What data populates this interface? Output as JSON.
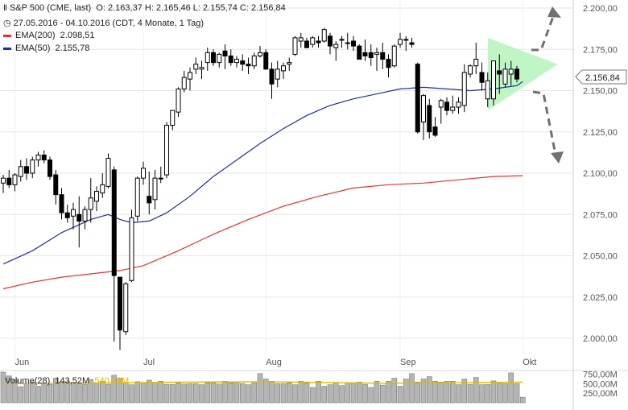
{
  "header": {
    "instrument": "S&P 500 (CME, last)",
    "ohlc": "O: 2.163,37  H: 2.165,46  L: 2.155,74  C: 2.156,84",
    "period": "27.05.2016 - 04.10.2016 (CDT, 4 Monate, 1 Tag)",
    "ema200_label": "EMA(200)",
    "ema200_value": "2.098,51",
    "ema50_label": "EMA(50)",
    "ema50_value": "2.155,78",
    "last_price_tag": "2.156,84"
  },
  "volume_panel": {
    "label": "Volume(28)",
    "last_value": "143,52M",
    "avg_value": "540,20M"
  },
  "colors": {
    "ema200": "#e8322c",
    "ema50": "#1f2fa0",
    "candle_up_fill": "#ffffff",
    "candle_down_fill": "#000000",
    "triangle_fill": "#b9f5c0",
    "volume_avg": "#e6b800",
    "arrow": "#707070"
  },
  "chart_data": {
    "type": "candlestick",
    "y_axis": {
      "range": [
        1990,
        2200
      ],
      "ticks": [
        2000,
        2025,
        2050,
        2075,
        2100,
        2125,
        2150,
        2175,
        2200
      ],
      "tick_labels": [
        "2.000,00",
        "2.025,00",
        "2.050,00",
        "2.075,00",
        "2.100,00",
        "2.125,00",
        "2.150,00",
        "2.175,00",
        "2.200,00"
      ]
    },
    "x_axis": {
      "labels": [
        {
          "text": "Jun",
          "index": 2
        },
        {
          "text": "Jul",
          "index": 24
        },
        {
          "text": "Aug",
          "index": 45
        },
        {
          "text": "Sep",
          "index": 68
        },
        {
          "text": "Okt",
          "index": 89
        }
      ]
    },
    "candles": [
      [
        2094,
        2099,
        2088,
        2097
      ],
      [
        2097,
        2102,
        2091,
        2093
      ],
      [
        2093,
        2100,
        2089,
        2099
      ],
      [
        2098,
        2108,
        2095,
        2104
      ],
      [
        2104,
        2109,
        2096,
        2100
      ],
      [
        2100,
        2110,
        2097,
        2108
      ],
      [
        2108,
        2113,
        2104,
        2111
      ],
      [
        2111,
        2114,
        2106,
        2108
      ],
      [
        2108,
        2110,
        2096,
        2098
      ],
      [
        2099,
        2102,
        2081,
        2087
      ],
      [
        2087,
        2091,
        2072,
        2076
      ],
      [
        2076,
        2081,
        2070,
        2073
      ],
      [
        2074,
        2082,
        2066,
        2078
      ],
      [
        2075,
        2086,
        2055,
        2071
      ],
      [
        2071,
        2080,
        2066,
        2078
      ],
      [
        2078,
        2097,
        2070,
        2085
      ],
      [
        2083,
        2092,
        2077,
        2089
      ],
      [
        2088,
        2100,
        2085,
        2093
      ],
      [
        2092,
        2112,
        2091,
        2109
      ],
      [
        2102,
        2104,
        1998,
        2038
      ],
      [
        2037,
        2035,
        1993,
        2005
      ],
      [
        2004,
        2034,
        2002,
        2033
      ],
      [
        2035,
        2078,
        2034,
        2073
      ],
      [
        2074,
        2098,
        2071,
        2097
      ],
      [
        2097,
        2107,
        2093,
        2103
      ],
      [
        2086,
        2101,
        2075,
        2082
      ],
      [
        2084,
        2102,
        2078,
        2097
      ],
      [
        2097,
        2104,
        2094,
        2097
      ],
      [
        2099,
        2131,
        2097,
        2129
      ],
      [
        2129,
        2138,
        2126,
        2138
      ],
      [
        2137,
        2152,
        2134,
        2151
      ],
      [
        2151,
        2162,
        2149,
        2158
      ],
      [
        2157,
        2164,
        2150,
        2161
      ],
      [
        2163,
        2170,
        2160,
        2166
      ],
      [
        2163,
        2168,
        2157,
        2164
      ],
      [
        2167,
        2176,
        2162,
        2173
      ],
      [
        2173,
        2175,
        2165,
        2167
      ],
      [
        2167,
        2173,
        2164,
        2172
      ],
      [
        2174,
        2178,
        2163,
        2171
      ],
      [
        2171,
        2175,
        2165,
        2167
      ],
      [
        2167,
        2171,
        2164,
        2169
      ],
      [
        2168,
        2172,
        2162,
        2166
      ],
      [
        2166,
        2170,
        2160,
        2165
      ],
      [
        2165,
        2173,
        2163,
        2171
      ],
      [
        2171,
        2177,
        2170,
        2173
      ],
      [
        2173,
        2175,
        2163,
        2163
      ],
      [
        2163,
        2167,
        2145,
        2154
      ],
      [
        2157,
        2168,
        2152,
        2163
      ],
      [
        2162,
        2167,
        2157,
        2165
      ],
      [
        2166,
        2170,
        2162,
        2167
      ],
      [
        2172,
        2183,
        2171,
        2182
      ],
      [
        2180,
        2185,
        2176,
        2182
      ],
      [
        2180,
        2182,
        2176,
        2176
      ],
      [
        2178,
        2183,
        2176,
        2182
      ],
      [
        2180,
        2183,
        2176,
        2179
      ],
      [
        2180,
        2188,
        2179,
        2187
      ],
      [
        2183,
        2185,
        2172,
        2177
      ],
      [
        2176,
        2180,
        2168,
        2178
      ],
      [
        2181,
        2183,
        2176,
        2181
      ],
      [
        2179,
        2185,
        2175,
        2179
      ],
      [
        2180,
        2183,
        2174,
        2177
      ],
      [
        2177,
        2178,
        2169,
        2169
      ],
      [
        2173,
        2181,
        2168,
        2171
      ],
      [
        2173,
        2178,
        2165,
        2170
      ],
      [
        2172,
        2176,
        2162,
        2173
      ],
      [
        2173,
        2179,
        2163,
        2169
      ],
      [
        2169,
        2172,
        2158,
        2164
      ],
      [
        2165,
        2178,
        2164,
        2177
      ],
      [
        2178,
        2185,
        2176,
        2181
      ],
      [
        2181,
        2183,
        2174,
        2181
      ],
      [
        2179,
        2182,
        2176,
        2178
      ],
      [
        2166,
        2167,
        2124,
        2125
      ],
      [
        2131,
        2148,
        2120,
        2147
      ],
      [
        2141,
        2145,
        2121,
        2125
      ],
      [
        2128,
        2134,
        2122,
        2123
      ],
      [
        2140,
        2145,
        2130,
        2144
      ],
      [
        2143,
        2146,
        2135,
        2138
      ],
      [
        2138,
        2147,
        2136,
        2140
      ],
      [
        2140,
        2146,
        2136,
        2143
      ],
      [
        2141,
        2166,
        2137,
        2161
      ],
      [
        2160,
        2166,
        2158,
        2165
      ],
      [
        2165,
        2179,
        2160,
        2169
      ],
      [
        2161,
        2167,
        2150,
        2155
      ],
      [
        2145,
        2161,
        2140,
        2156
      ],
      [
        2145,
        2167,
        2141,
        2168
      ],
      [
        2162,
        2172,
        2148,
        2160
      ],
      [
        2154,
        2167,
        2152,
        2163
      ],
      [
        2160,
        2168,
        2153,
        2163
      ],
      [
        2163,
        2165,
        2155,
        2157
      ]
    ],
    "ema50": [
      [
        0,
        2045
      ],
      [
        5,
        2053
      ],
      [
        10,
        2064
      ],
      [
        15,
        2072
      ],
      [
        18,
        2075
      ],
      [
        20,
        2072
      ],
      [
        22,
        2070
      ],
      [
        25,
        2071
      ],
      [
        28,
        2076
      ],
      [
        32,
        2086
      ],
      [
        36,
        2098
      ],
      [
        40,
        2108
      ],
      [
        44,
        2118
      ],
      [
        48,
        2127
      ],
      [
        52,
        2135
      ],
      [
        56,
        2141
      ],
      [
        60,
        2145
      ],
      [
        64,
        2148
      ],
      [
        68,
        2151
      ],
      [
        72,
        2152
      ],
      [
        76,
        2151
      ],
      [
        80,
        2150
      ],
      [
        84,
        2151
      ],
      [
        88,
        2153
      ],
      [
        89,
        2155.5
      ]
    ],
    "ema200": [
      [
        0,
        2030
      ],
      [
        5,
        2034
      ],
      [
        10,
        2037
      ],
      [
        15,
        2039
      ],
      [
        20,
        2041
      ],
      [
        24,
        2044
      ],
      [
        30,
        2053
      ],
      [
        36,
        2063
      ],
      [
        42,
        2072
      ],
      [
        48,
        2080
      ],
      [
        54,
        2086
      ],
      [
        60,
        2091
      ],
      [
        66,
        2093
      ],
      [
        72,
        2094
      ],
      [
        78,
        2096
      ],
      [
        84,
        2098
      ],
      [
        89,
        2098.5
      ]
    ],
    "triangle": {
      "points": [
        [
          83,
          2182
        ],
        [
          83,
          2138
        ],
        [
          95,
          2166
        ]
      ]
    },
    "volume": {
      "ticks": [
        250,
        500,
        750
      ],
      "tick_labels": [
        "250,00M",
        "500,00M",
        "750,00M"
      ],
      "range": [
        0,
        800
      ],
      "bars": [
        850,
        700,
        600,
        420,
        500,
        540,
        430,
        520,
        480,
        640,
        540,
        550,
        530,
        520,
        480,
        610,
        520,
        560,
        480,
        720,
        640,
        520,
        470,
        550,
        520,
        590,
        530,
        560,
        480,
        480,
        520,
        490,
        500,
        500,
        470,
        520,
        520,
        490,
        560,
        520,
        540,
        500,
        470,
        520,
        760,
        620,
        560,
        500,
        500,
        520,
        470,
        560,
        520,
        400,
        560,
        430,
        470,
        520,
        450,
        520,
        520,
        540,
        480,
        400,
        560,
        460,
        560,
        640,
        430,
        620,
        760,
        540,
        620,
        680,
        560,
        540,
        560,
        560,
        470,
        620,
        480,
        660,
        470,
        480,
        570,
        520,
        500,
        780,
        500,
        144
      ],
      "avg": [
        [
          0,
          500
        ],
        [
          20,
          520
        ],
        [
          30,
          540
        ],
        [
          45,
          550
        ],
        [
          55,
          530
        ],
        [
          65,
          510
        ],
        [
          75,
          520
        ],
        [
          89,
          540
        ]
      ]
    }
  }
}
